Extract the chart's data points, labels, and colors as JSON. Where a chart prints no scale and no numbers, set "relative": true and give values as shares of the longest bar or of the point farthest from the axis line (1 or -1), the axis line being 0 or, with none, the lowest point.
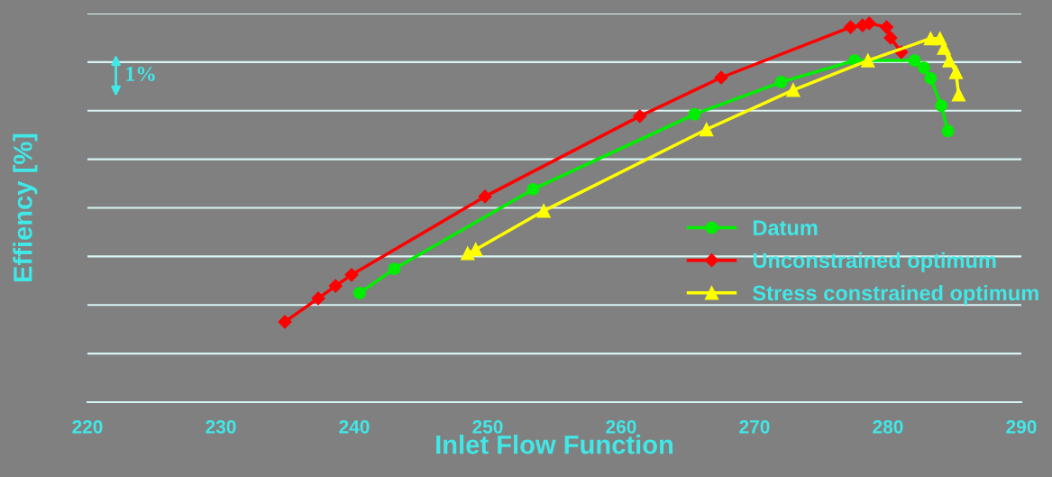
{
  "chart_data": {
    "type": "line",
    "xlabel": "Inlet Flow Function",
    "ylabel": "Effiency [%]",
    "relative": true,
    "xlim": [
      220,
      290
    ],
    "xticks": [
      220,
      230,
      240,
      250,
      260,
      270,
      280,
      290
    ],
    "grid": "y",
    "legend": "right",
    "line_style": "solid",
    "annotations": [
      "1%"
    ],
    "series": [
      {
        "name": "Datum",
        "color": "#00ee00",
        "marker": "circle",
        "x": [
          240.4,
          243.0,
          253.4,
          265.5,
          272.0,
          277.5,
          282.0,
          282.7,
          283.2,
          284.0,
          284.5
        ],
        "values": [
          0.288,
          0.352,
          0.562,
          0.76,
          0.845,
          0.902,
          0.902,
          0.883,
          0.855,
          0.783,
          0.716
        ]
      },
      {
        "name": "Unconstrained optimum",
        "color": "#ff0000",
        "marker": "diamond",
        "x": [
          234.8,
          237.3,
          238.6,
          239.8,
          249.8,
          261.4,
          267.5,
          277.2,
          278.1,
          278.6,
          279.9,
          280.2,
          281.0
        ],
        "values": [
          0.212,
          0.274,
          0.307,
          0.336,
          0.543,
          0.755,
          0.857,
          0.99,
          0.995,
          1.0,
          0.99,
          0.962,
          0.924
        ]
      },
      {
        "name": "Stress constrained optimum",
        "color": "#ffff00",
        "marker": "triangle",
        "x": [
          248.5,
          249.1,
          254.2,
          266.4,
          272.9,
          278.5,
          283.2,
          283.9,
          284.2,
          284.6,
          285.1,
          285.3
        ],
        "values": [
          0.393,
          0.403,
          0.505,
          0.72,
          0.824,
          0.902,
          0.96,
          0.96,
          0.935,
          0.902,
          0.871,
          0.812
        ]
      }
    ]
  }
}
